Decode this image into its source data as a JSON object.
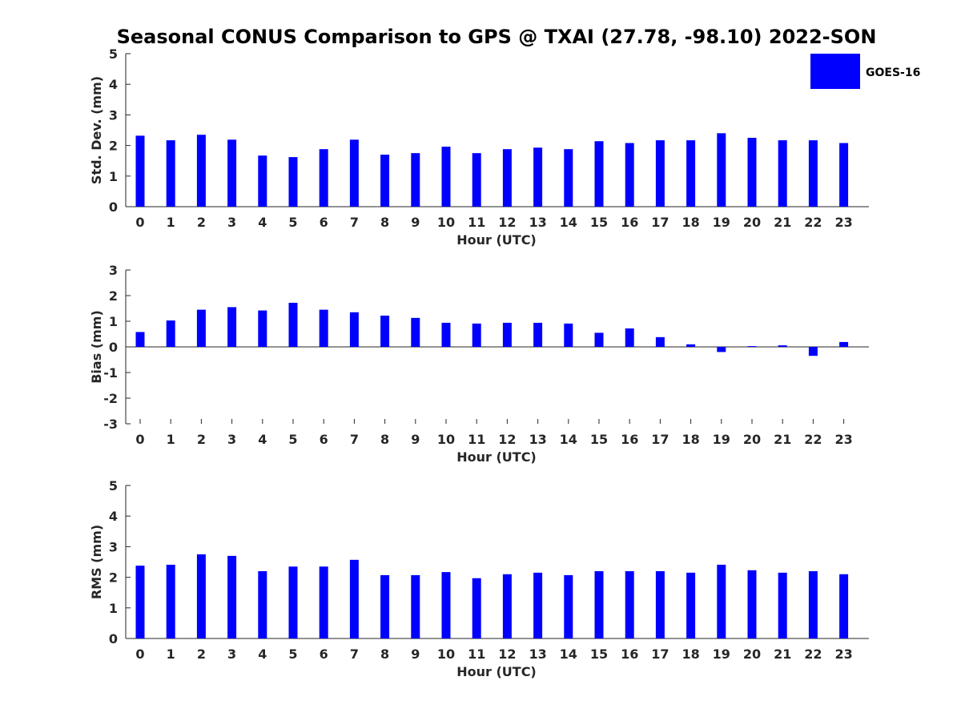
{
  "figure": {
    "title": "Seasonal CONUS Comparison to GPS @ TXAI (27.78, -98.10) 2022-SON",
    "legend": {
      "label": "GOES-16",
      "color": "#0000ff",
      "placement": "top-right"
    },
    "bar_color": "#0000ff"
  },
  "chart_data": [
    {
      "type": "bar",
      "name": "std-dev",
      "xlabel": "Hour (UTC)",
      "ylabel": "Std. Dev. (mm)",
      "ylim": [
        0,
        5
      ],
      "yticks": [
        0,
        1,
        2,
        3,
        4,
        5
      ],
      "categories": [
        "0",
        "1",
        "2",
        "3",
        "4",
        "5",
        "6",
        "7",
        "8",
        "9",
        "10",
        "11",
        "12",
        "13",
        "14",
        "15",
        "16",
        "17",
        "18",
        "19",
        "20",
        "21",
        "22",
        "23"
      ],
      "series": [
        {
          "name": "GOES-16",
          "values": [
            2.32,
            2.17,
            2.35,
            2.19,
            1.67,
            1.62,
            1.88,
            2.19,
            1.7,
            1.75,
            1.96,
            1.75,
            1.88,
            1.93,
            1.88,
            2.14,
            2.08,
            2.17,
            2.17,
            2.4,
            2.25,
            2.17,
            2.17,
            2.08
          ]
        }
      ],
      "grid": false
    },
    {
      "type": "bar",
      "name": "bias",
      "xlabel": "Hour (UTC)",
      "ylabel": "Bias (mm)",
      "ylim": [
        -3,
        3
      ],
      "yticks": [
        -3,
        -2,
        -1,
        0,
        1,
        2,
        3
      ],
      "categories": [
        "0",
        "1",
        "2",
        "3",
        "4",
        "5",
        "6",
        "7",
        "8",
        "9",
        "10",
        "11",
        "12",
        "13",
        "14",
        "15",
        "16",
        "17",
        "18",
        "19",
        "20",
        "21",
        "22",
        "23"
      ],
      "series": [
        {
          "name": "GOES-16",
          "values": [
            0.58,
            1.03,
            1.45,
            1.55,
            1.42,
            1.72,
            1.45,
            1.35,
            1.22,
            1.13,
            0.94,
            0.91,
            0.94,
            0.94,
            0.91,
            0.55,
            0.72,
            0.38,
            0.1,
            -0.2,
            0.03,
            0.06,
            -0.35,
            0.19
          ]
        }
      ],
      "grid": false
    },
    {
      "type": "bar",
      "name": "rms",
      "xlabel": "Hour (UTC)",
      "ylabel": "RMS (mm)",
      "ylim": [
        0,
        5
      ],
      "yticks": [
        0,
        1,
        2,
        3,
        4,
        5
      ],
      "categories": [
        "0",
        "1",
        "2",
        "3",
        "4",
        "5",
        "6",
        "7",
        "8",
        "9",
        "10",
        "11",
        "12",
        "13",
        "14",
        "15",
        "16",
        "17",
        "18",
        "19",
        "20",
        "21",
        "22",
        "23"
      ],
      "series": [
        {
          "name": "GOES-16",
          "values": [
            2.38,
            2.41,
            2.75,
            2.7,
            2.2,
            2.35,
            2.35,
            2.57,
            2.07,
            2.07,
            2.17,
            1.97,
            2.1,
            2.15,
            2.07,
            2.2,
            2.2,
            2.2,
            2.15,
            2.41,
            2.23,
            2.15,
            2.2,
            2.1
          ]
        }
      ],
      "grid": false
    }
  ]
}
